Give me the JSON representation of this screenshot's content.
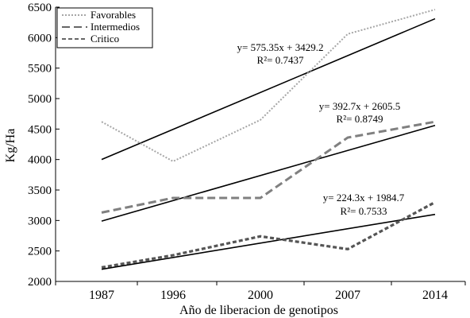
{
  "chart_data": {
    "type": "line",
    "categories": [
      "1987",
      "1996",
      "2000",
      "2007",
      "2014"
    ],
    "xlabel": "Año de liberacion de genotipos",
    "ylabel": "Kg/Ha",
    "ylim": [
      2000,
      6500
    ],
    "yticks": [
      2000,
      2500,
      3000,
      3500,
      4000,
      4500,
      5000,
      5500,
      6000,
      6500
    ],
    "grid": false,
    "legend_position": "top-left",
    "series": [
      {
        "name": "Favorables",
        "style": "dotted",
        "color": "#a6a6a6",
        "values": [
          4620,
          3970,
          4650,
          6060,
          6460
        ],
        "trend": {
          "start": 4000,
          "end": 6310,
          "equation": "y= 575.35x + 3429.2",
          "r2": "R²= 0.7437"
        }
      },
      {
        "name": "Intermedios",
        "style": "dashed",
        "color": "#808080",
        "values": [
          3130,
          3370,
          3370,
          4360,
          4620
        ],
        "trend": {
          "start": 2990,
          "end": 4560,
          "equation": "y= 392.7x + 2605.5",
          "r2": "R²= 0.8749"
        }
      },
      {
        "name": "Critico",
        "style": "short-dashed",
        "color": "#555555",
        "values": [
          2230,
          2430,
          2740,
          2530,
          3300
        ],
        "trend": {
          "start": 2200,
          "end": 3100,
          "equation": "y= 224.3x + 1984.7",
          "r2": "R²= 0.7533"
        }
      }
    ]
  }
}
